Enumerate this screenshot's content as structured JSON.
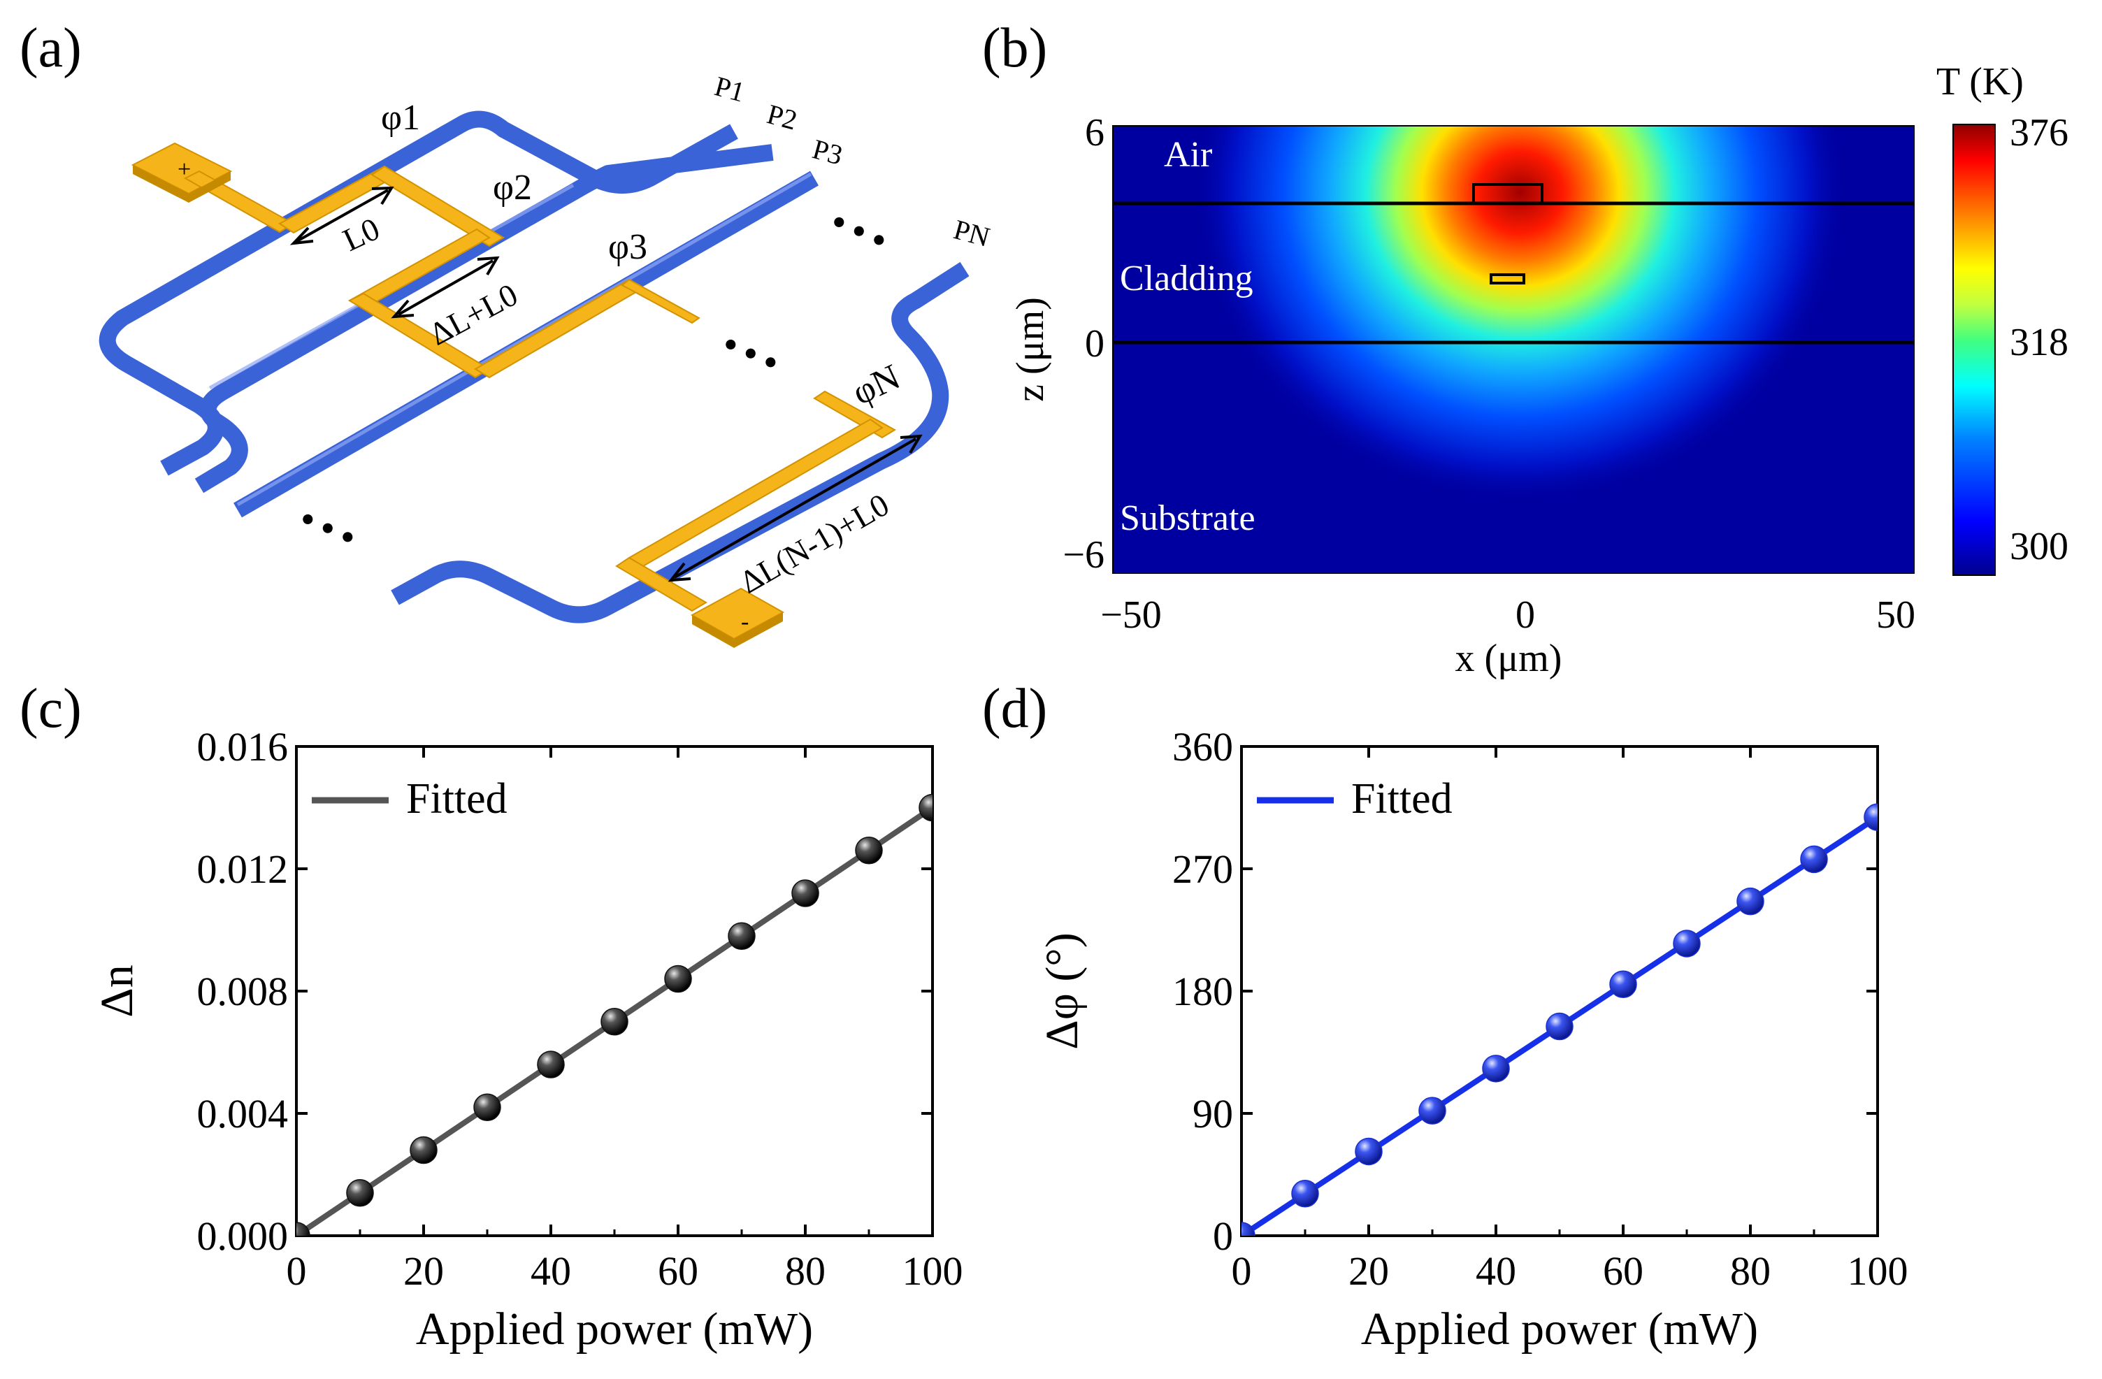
{
  "panel_labels": {
    "a": "(a)",
    "b": "(b)",
    "c": "(c)",
    "d": "(d)"
  },
  "panel_a": {
    "phases": [
      "φ1",
      "φ2",
      "φ3",
      "φN"
    ],
    "ports": [
      "P1",
      "P2",
      "P3",
      "PN"
    ],
    "lengths": [
      "L0",
      "ΔL+L0",
      "ΔL(N-1)+L0"
    ],
    "electrodes": {
      "plus": "+",
      "minus": "-"
    },
    "ellipsis": "• • •",
    "colors": {
      "waveguide": "#3b63d8",
      "electrode": "#f5b41a"
    }
  },
  "chart_data": [
    {
      "id": "b",
      "type": "heatmap",
      "title": "",
      "colorbar_title": "T (K)",
      "colorbar_ticks": [
        "376",
        "318",
        "300"
      ],
      "colorbar_values": [
        376,
        318,
        300
      ],
      "colormap": "jet",
      "region_labels": [
        "Air",
        "Cladding",
        "Substrate"
      ],
      "xlabel": "x (μm)",
      "ylabel": "z (μm)",
      "xlim": [
        -50,
        50
      ],
      "ylim": [
        -6,
        6
      ],
      "xticks": [
        "−50",
        "0",
        "50"
      ],
      "xtick_values": [
        -50,
        0,
        50
      ],
      "yticks": [
        "6",
        "0",
        "−6"
      ],
      "ytick_values": [
        6,
        0,
        -6
      ],
      "interfaces_z": [
        4,
        0
      ],
      "hotspot": {
        "x": -5,
        "z": 4,
        "T": 376
      },
      "heater": {
        "x_range": [
          -7,
          2
        ],
        "z_range": [
          4,
          4.5
        ]
      },
      "waveguide": {
        "x_range": [
          -5,
          -0.5
        ],
        "z_range": [
          1.7,
          2
        ]
      }
    },
    {
      "id": "c",
      "type": "scatter",
      "title": "",
      "xlabel": "Applied power (mW)",
      "ylabel": "Δn",
      "xlim": [
        0,
        100
      ],
      "ylim": [
        0,
        0.016
      ],
      "xticks": [
        "0",
        "20",
        "40",
        "60",
        "80",
        "100"
      ],
      "xtick_values": [
        0,
        20,
        40,
        60,
        80,
        100
      ],
      "yticks": [
        "0.000",
        "0.004",
        "0.008",
        "0.012",
        "0.016"
      ],
      "ytick_values": [
        0,
        0.004,
        0.008,
        0.012,
        0.016
      ],
      "legend": "Fitted",
      "legend_position": "top-left",
      "x": [
        0,
        10,
        20,
        30,
        40,
        50,
        60,
        70,
        80,
        90,
        100
      ],
      "y": [
        0,
        0.0014,
        0.0028,
        0.0042,
        0.0056,
        0.007,
        0.0084,
        0.0098,
        0.0112,
        0.0126,
        0.014
      ],
      "fit": {
        "x": [
          0,
          100
        ],
        "y": [
          0,
          0.014
        ]
      },
      "color": "#555555",
      "marker_color": "#111111"
    },
    {
      "id": "d",
      "type": "scatter",
      "title": "",
      "xlabel": "Applied power (mW)",
      "ylabel": "Δφ (°)",
      "xlim": [
        0,
        100
      ],
      "ylim": [
        0,
        360
      ],
      "xticks": [
        "0",
        "20",
        "40",
        "60",
        "80",
        "100"
      ],
      "xtick_values": [
        0,
        20,
        40,
        60,
        80,
        100
      ],
      "yticks": [
        "0",
        "90",
        "180",
        "270",
        "360"
      ],
      "ytick_values": [
        0,
        90,
        180,
        270,
        360
      ],
      "legend": "Fitted",
      "legend_position": "top-left",
      "x": [
        0,
        10,
        20,
        30,
        40,
        50,
        60,
        70,
        80,
        90,
        100
      ],
      "y": [
        0,
        31,
        62,
        92,
        123,
        154,
        185,
        215,
        246,
        277,
        308
      ],
      "fit": {
        "x": [
          0,
          100
        ],
        "y": [
          0,
          308
        ]
      },
      "color": "#1530e8",
      "marker_color": "#1a2fd0"
    }
  ]
}
